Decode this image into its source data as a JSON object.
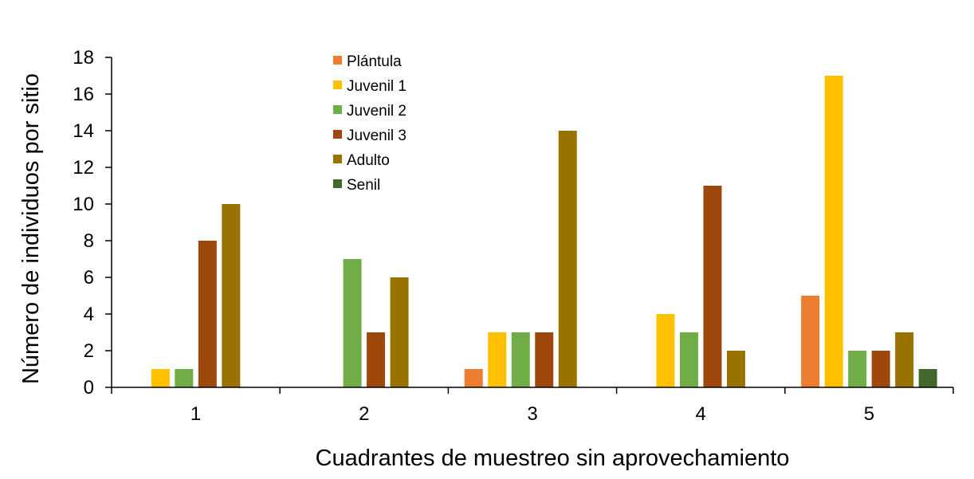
{
  "chart_data": {
    "type": "bar",
    "title": "",
    "xlabel": "Cuadrantes de muestreo sin aprovechamiento",
    "ylabel": "Número de individuos por sitio",
    "categories": [
      "1",
      "2",
      "3",
      "4",
      "5"
    ],
    "ylim": [
      0,
      18
    ],
    "yticks": [
      "0",
      "2",
      "4",
      "6",
      "8",
      "10",
      "12",
      "14",
      "16",
      "18"
    ],
    "grid": false,
    "legend_position": "top-left",
    "series": [
      {
        "name": "Plántula",
        "color": "#ED7D31",
        "values": [
          0,
          0,
          1,
          0,
          5
        ]
      },
      {
        "name": "Juvenil 1",
        "color": "#FFC000",
        "values": [
          1,
          0,
          3,
          4,
          17
        ]
      },
      {
        "name": "Juvenil 2",
        "color": "#70AD47",
        "values": [
          1,
          7,
          3,
          3,
          2
        ]
      },
      {
        "name": "Juvenil 3",
        "color": "#9E480E",
        "values": [
          8,
          3,
          3,
          11,
          2
        ]
      },
      {
        "name": "Adulto",
        "color": "#997300",
        "values": [
          10,
          6,
          14,
          2,
          3
        ]
      },
      {
        "name": "Senil",
        "color": "#43682B",
        "values": [
          0,
          0,
          0,
          0,
          1
        ]
      }
    ]
  }
}
